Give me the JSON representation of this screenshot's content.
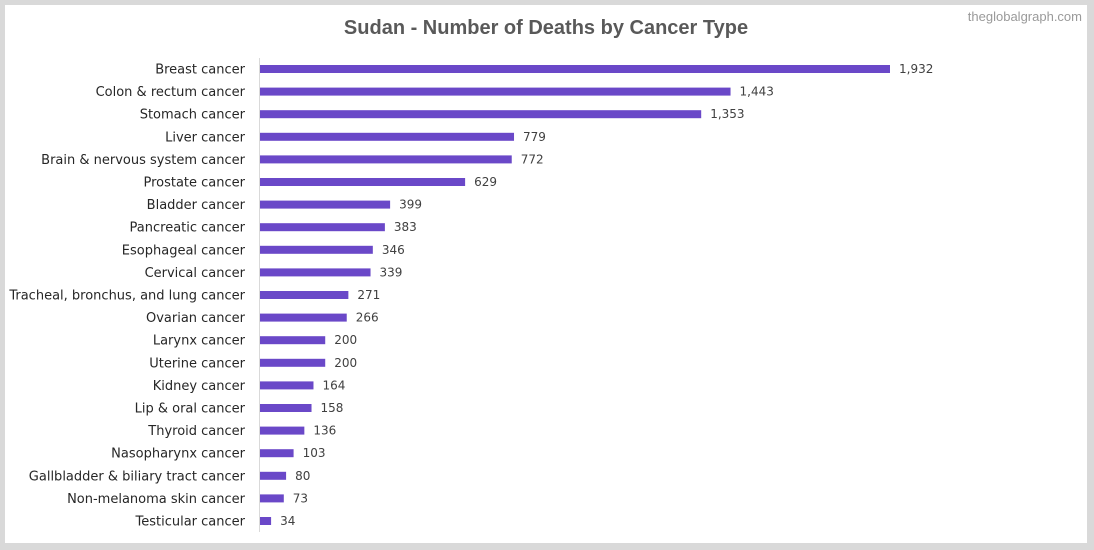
{
  "watermark": "theglobalgraph.com",
  "colors": {
    "bar": "#6a48c8",
    "axis": "#d9d9d9"
  },
  "chart_data": {
    "type": "bar",
    "orientation": "horizontal",
    "title": "Sudan - Number of Deaths by Cancer Type",
    "xlabel": "",
    "ylabel": "",
    "grid": false,
    "legend": "none",
    "xlim": [
      0,
      1932
    ],
    "categories": [
      "Breast cancer",
      "Colon & rectum cancer",
      "Stomach cancer",
      "Liver cancer",
      "Brain & nervous system cancer",
      "Prostate cancer",
      "Bladder cancer",
      "Pancreatic cancer",
      "Esophageal cancer",
      "Cervical cancer",
      "Tracheal, bronchus, and lung cancer",
      "Ovarian cancer",
      "Larynx cancer",
      "Uterine cancer",
      "Kidney cancer",
      "Lip & oral cancer",
      "Thyroid cancer",
      "Nasopharynx cancer",
      "Gallbladder & biliary tract cancer",
      "Non-melanoma skin cancer",
      "Testicular cancer"
    ],
    "values": [
      1932,
      1443,
      1353,
      779,
      772,
      629,
      399,
      383,
      346,
      339,
      271,
      266,
      200,
      200,
      164,
      158,
      136,
      103,
      80,
      73,
      34
    ],
    "value_labels": [
      "1,932",
      "1,443",
      "1,353",
      "779",
      "772",
      "629",
      "399",
      "383",
      "346",
      "339",
      "271",
      "266",
      "200",
      "200",
      "164",
      "158",
      "136",
      "103",
      "80",
      "73",
      "34"
    ]
  }
}
